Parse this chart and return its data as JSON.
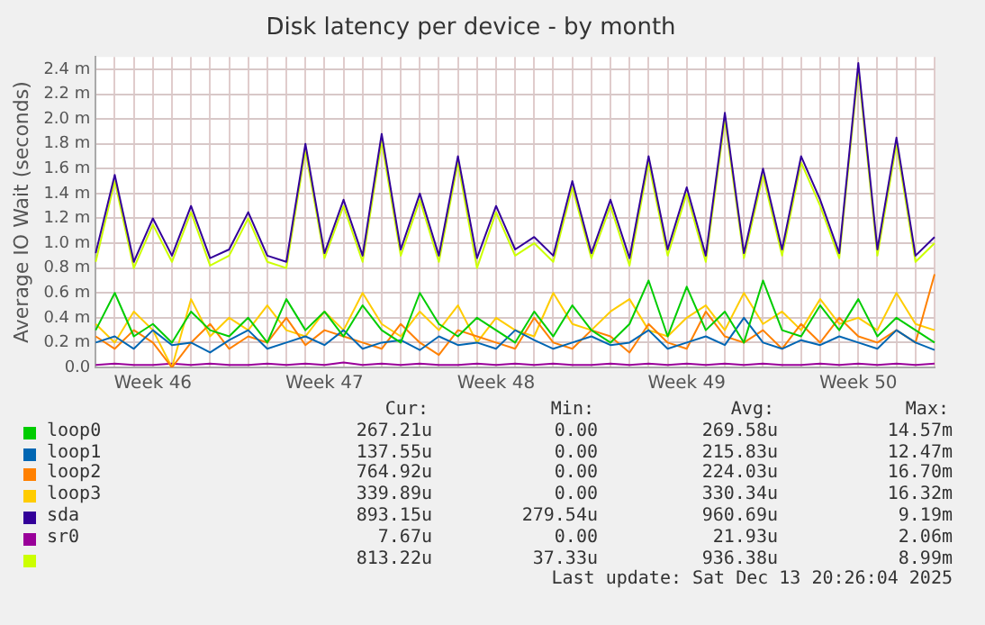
{
  "chart_data": {
    "type": "line",
    "title": "Disk latency per device - by month",
    "ylabel": "Average IO Wait (seconds)",
    "categories": [
      null,
      null,
      null,
      "Week 46",
      null,
      null,
      null,
      null,
      null,
      null,
      null,
      null,
      "Week 47",
      null,
      null,
      null,
      null,
      null,
      null,
      null,
      null,
      "Week 48",
      null,
      null,
      null,
      null,
      null,
      null,
      null,
      null,
      null,
      "Week 49",
      null,
      null,
      null,
      null,
      null,
      null,
      null,
      null,
      "Week 50",
      null,
      null,
      null,
      null
    ],
    "ylim": [
      0,
      2.5
    ],
    "yticks": [
      {
        "value": 0,
        "label": "0.0"
      },
      {
        "value": 0.2,
        "label": "0.2 m"
      },
      {
        "value": 0.4,
        "label": "0.4 m"
      },
      {
        "value": 0.6,
        "label": "0.6 m"
      },
      {
        "value": 0.8,
        "label": "0.8 m"
      },
      {
        "value": 1.0,
        "label": "1.0 m"
      },
      {
        "value": 1.2,
        "label": "1.2 m"
      },
      {
        "value": 1.4,
        "label": "1.4 m"
      },
      {
        "value": 1.6,
        "label": "1.6 m"
      },
      {
        "value": 1.8,
        "label": "1.8 m"
      },
      {
        "value": 2.0,
        "label": "2.0 m"
      },
      {
        "value": 2.2,
        "label": "2.2 m"
      },
      {
        "value": 2.4,
        "label": "2.4 m"
      }
    ],
    "grid": true,
    "legend": "bottom",
    "marker": "none",
    "line_style": "solid",
    "series": [
      {
        "name": "loop0",
        "color": "#00cc00",
        "values": [
          0.3,
          0.6,
          0.25,
          0.35,
          0.2,
          0.45,
          0.3,
          0.25,
          0.4,
          0.2,
          0.55,
          0.3,
          0.45,
          0.25,
          0.5,
          0.3,
          0.2,
          0.6,
          0.35,
          0.25,
          0.4,
          0.3,
          0.2,
          0.45,
          0.25,
          0.5,
          0.3,
          0.2,
          0.35,
          0.7,
          0.25,
          0.65,
          0.3,
          0.45,
          0.2,
          0.7,
          0.3,
          0.25,
          0.5,
          0.3,
          0.55,
          0.25,
          0.4,
          0.3,
          0.2
        ]
      },
      {
        "name": "loop1",
        "color": "#0066b3",
        "values": [
          0.2,
          0.25,
          0.15,
          0.3,
          0.18,
          0.2,
          0.12,
          0.22,
          0.3,
          0.15,
          0.2,
          0.25,
          0.18,
          0.3,
          0.15,
          0.2,
          0.22,
          0.14,
          0.25,
          0.18,
          0.2,
          0.15,
          0.3,
          0.22,
          0.15,
          0.2,
          0.25,
          0.18,
          0.2,
          0.3,
          0.15,
          0.2,
          0.25,
          0.18,
          0.4,
          0.2,
          0.15,
          0.22,
          0.18,
          0.25,
          0.2,
          0.15,
          0.3,
          0.2,
          0.14
        ]
      },
      {
        "name": "loop2",
        "color": "#ff8000",
        "values": [
          0.25,
          0.15,
          0.3,
          0.2,
          0.0,
          0.2,
          0.35,
          0.15,
          0.25,
          0.2,
          0.4,
          0.18,
          0.3,
          0.25,
          0.2,
          0.15,
          0.35,
          0.2,
          0.1,
          0.3,
          0.25,
          0.2,
          0.15,
          0.4,
          0.2,
          0.15,
          0.3,
          0.25,
          0.12,
          0.35,
          0.2,
          0.15,
          0.45,
          0.25,
          0.2,
          0.3,
          0.15,
          0.35,
          0.2,
          0.4,
          0.25,
          0.2,
          0.3,
          0.2,
          0.75
        ]
      },
      {
        "name": "loop3",
        "color": "#ffcc00",
        "values": [
          0.35,
          0.2,
          0.45,
          0.3,
          0.0,
          0.55,
          0.25,
          0.4,
          0.3,
          0.5,
          0.3,
          0.25,
          0.45,
          0.3,
          0.6,
          0.35,
          0.25,
          0.45,
          0.3,
          0.5,
          0.2,
          0.4,
          0.3,
          0.25,
          0.6,
          0.35,
          0.3,
          0.45,
          0.55,
          0.3,
          0.25,
          0.4,
          0.5,
          0.3,
          0.6,
          0.35,
          0.45,
          0.3,
          0.55,
          0.35,
          0.4,
          0.3,
          0.6,
          0.35,
          0.3
        ]
      },
      {
        "name": "sda",
        "color": "#330099",
        "values": [
          0.92,
          1.55,
          0.85,
          1.2,
          0.9,
          1.3,
          0.88,
          0.95,
          1.25,
          0.9,
          0.85,
          1.8,
          0.92,
          1.35,
          0.9,
          1.88,
          0.95,
          1.4,
          0.9,
          1.7,
          0.88,
          1.3,
          0.95,
          1.05,
          0.9,
          1.5,
          0.92,
          1.35,
          0.88,
          1.7,
          0.95,
          1.45,
          0.9,
          2.05,
          0.92,
          1.6,
          0.95,
          1.7,
          1.35,
          0.92,
          2.45,
          0.95,
          1.85,
          0.9,
          1.05
        ]
      },
      {
        "name": "sr0",
        "color": "#990099",
        "values": [
          0.02,
          0.03,
          0.02,
          0.02,
          0.03,
          0.02,
          0.03,
          0.02,
          0.02,
          0.03,
          0.02,
          0.03,
          0.02,
          0.04,
          0.02,
          0.03,
          0.02,
          0.03,
          0.02,
          0.02,
          0.03,
          0.02,
          0.03,
          0.02,
          0.03,
          0.02,
          0.02,
          0.03,
          0.02,
          0.03,
          0.02,
          0.03,
          0.02,
          0.03,
          0.02,
          0.03,
          0.02,
          0.02,
          0.03,
          0.02,
          0.03,
          0.02,
          0.03,
          0.02,
          0.03
        ]
      },
      {
        "color": "#ccff00",
        "values": [
          0.85,
          1.5,
          0.8,
          1.15,
          0.85,
          1.25,
          0.82,
          0.9,
          1.2,
          0.85,
          0.8,
          1.75,
          0.88,
          1.3,
          0.85,
          1.82,
          0.9,
          1.35,
          0.85,
          1.65,
          0.8,
          1.25,
          0.9,
          1.0,
          0.85,
          1.45,
          0.88,
          1.3,
          0.82,
          1.65,
          0.9,
          1.4,
          0.85,
          2.0,
          0.88,
          1.55,
          0.9,
          1.65,
          1.3,
          0.88,
          2.4,
          0.9,
          1.8,
          0.85,
          1.0
        ]
      }
    ],
    "annotations": [
      "Cur:",
      "Min:",
      "Avg:",
      "Max:",
      "267.21u",
      "0.00",
      "269.58u",
      "14.57m",
      "137.55u",
      "0.00",
      "215.83u",
      "12.47m",
      "764.92u",
      "0.00",
      "224.03u",
      "16.70m",
      "339.89u",
      "0.00",
      "330.34u",
      "16.32m",
      "893.15u",
      "279.54u",
      "960.69u",
      "9.19m",
      "7.67u",
      "0.00",
      "21.93u",
      "2.06m",
      "813.22u",
      "37.33u",
      "936.38u",
      "8.99m",
      "Last update: Sat Dec 13 20:26:04 2025"
    ]
  }
}
